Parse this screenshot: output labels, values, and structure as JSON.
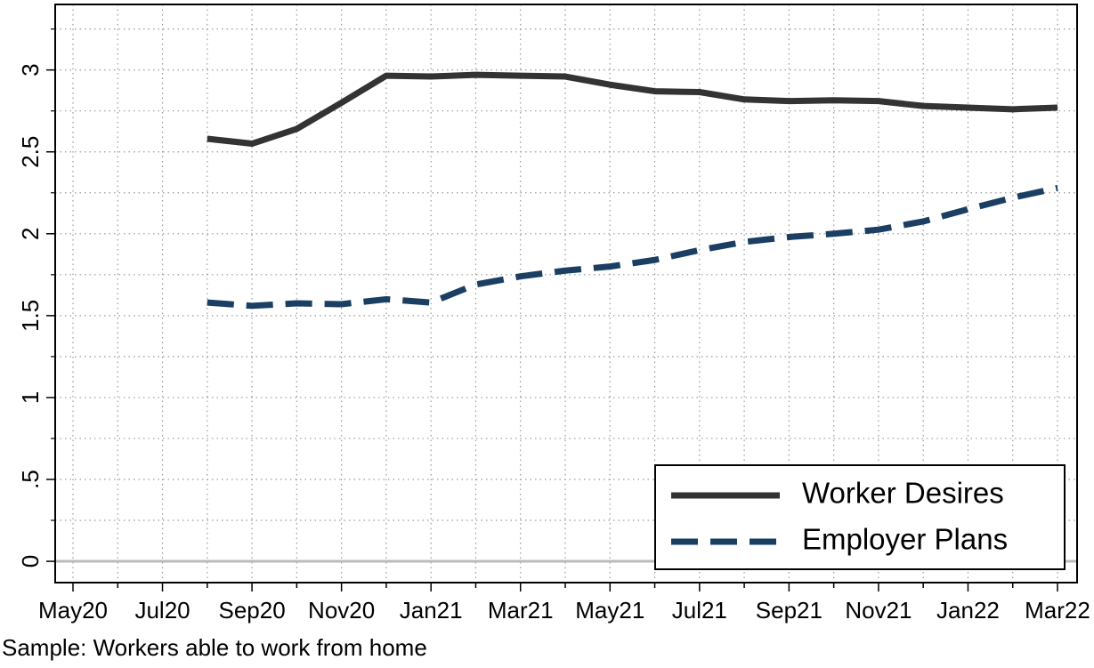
{
  "chart_data": {
    "type": "line",
    "categories": [
      "May20",
      null,
      "Jul20",
      null,
      "Sep20",
      null,
      "Nov20",
      null,
      "Jan21",
      null,
      "Mar21",
      null,
      "May21",
      null,
      "Jul21",
      null,
      "Sep21",
      null,
      "Nov21",
      null,
      "Jan22",
      null,
      "Mar22"
    ],
    "series": [
      {
        "name": "Worker Desires",
        "color": "#333333",
        "style": "solid",
        "values": [
          null,
          null,
          null,
          2.58,
          2.55,
          2.64,
          2.8,
          2.965,
          2.96,
          2.97,
          2.965,
          2.96,
          2.91,
          2.87,
          2.865,
          2.82,
          2.81,
          2.815,
          2.81,
          2.78,
          2.77,
          2.76,
          2.77
        ]
      },
      {
        "name": "Employer Plans",
        "color": "#1a3f63",
        "style": "dashed",
        "values": [
          null,
          null,
          null,
          1.58,
          1.56,
          1.575,
          1.57,
          1.6,
          1.58,
          1.69,
          1.74,
          1.775,
          1.8,
          1.84,
          1.9,
          1.95,
          1.98,
          2.0,
          2.025,
          2.075,
          2.15,
          2.22,
          2.28
        ]
      }
    ],
    "ylim": [
      -0.13,
      3.4
    ],
    "yticks": [
      0,
      {
        "value": 0.5,
        "label": ".5"
      },
      1,
      1.5,
      2,
      2.5,
      3
    ],
    "yminorticks": [
      0.25,
      0.75,
      1.25,
      1.75,
      2.25,
      2.75,
      3.25
    ],
    "grid": true,
    "legend": "lower right",
    "note": "Sample: Workers able to work from home"
  }
}
